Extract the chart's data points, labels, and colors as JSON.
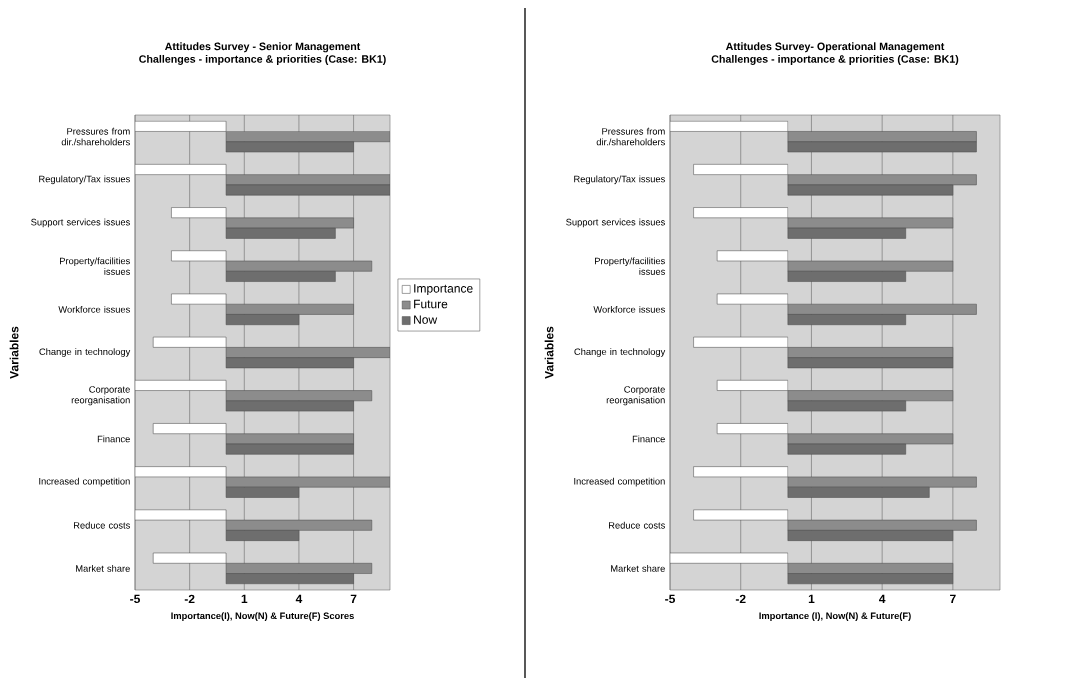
{
  "chart_data": [
    {
      "type": "bar",
      "orientation": "horizontal",
      "title": "Attitudes Survey - Senior Management",
      "subtitle": "Challenges - importance & priorities (Case: BK1)",
      "xlabel": "Importance(I), Now(N) & Future(F) Scores",
      "ylabel": "Variables",
      "categories": [
        "Pressures from dir./shareholders",
        "Regulatory/Tax issues",
        "Support services issues",
        "Property/facilities issues",
        "Workforce issues",
        "Change in technology",
        "Corporate reorganisation",
        "Finance",
        "Increased competition",
        "Reduce costs",
        "Market share"
      ],
      "series": [
        {
          "name": "Importance",
          "color": "#ffffff",
          "values": [
            -5,
            -5,
            -3,
            -3,
            -3,
            -4,
            -5,
            -4,
            -5,
            -5,
            -4
          ]
        },
        {
          "name": "Future",
          "color": "#8c8c8c",
          "values": [
            9,
            9,
            7,
            8,
            7,
            9,
            8,
            7,
            9,
            8,
            8
          ]
        },
        {
          "name": "Now",
          "color": "#6e6e6e",
          "values": [
            7,
            9,
            6,
            6,
            4,
            7,
            7,
            7,
            4,
            4,
            7
          ]
        }
      ],
      "xlim": [
        -5,
        9
      ],
      "xticks": [
        -5,
        -2,
        1,
        4,
        7
      ],
      "grid": "x",
      "legend": "right"
    },
    {
      "type": "bar",
      "orientation": "horizontal",
      "title": "Attitudes Survey- Operational Management",
      "subtitle": "Challenges - importance & priorities (Case: BK1)",
      "xlabel": "Importance (I), Now(N) & Future(F)",
      "ylabel": "Variables",
      "categories": [
        "Pressures from dir./shareholders",
        "Regulatory/Tax issues",
        "Support services issues",
        "Property/facilities issues",
        "Workforce issues",
        "Change in technology",
        "Corporate reorganisation",
        "Finance",
        "Increased competition",
        "Reduce costs",
        "Market share"
      ],
      "series": [
        {
          "color": "#ffffff",
          "values": [
            -5,
            -4,
            -4,
            -3,
            -3,
            -4,
            -3,
            -3,
            -4,
            -4,
            -5
          ]
        },
        {
          "color": "#8c8c8c",
          "values": [
            8,
            8,
            7,
            7,
            8,
            7,
            7,
            7,
            8,
            8,
            7
          ]
        },
        {
          "color": "#6e6e6e",
          "values": [
            8,
            7,
            5,
            5,
            5,
            7,
            5,
            5,
            6,
            7,
            7
          ]
        }
      ],
      "xlim": [
        -5,
        9
      ],
      "xticks": [
        -5,
        -2,
        1,
        4,
        7
      ],
      "grid": "x"
    }
  ]
}
